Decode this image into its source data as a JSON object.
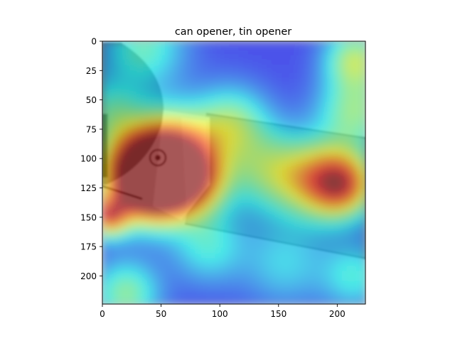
{
  "chart_data": {
    "type": "heatmap",
    "title": "can opener, tin opener",
    "xlabel": "",
    "ylabel": "",
    "xlim": [
      0,
      224
    ],
    "ylim": [
      224,
      0
    ],
    "xticks": [
      0,
      50,
      100,
      150,
      200
    ],
    "yticks": [
      0,
      25,
      50,
      75,
      100,
      125,
      150,
      175,
      200
    ],
    "colormap": "jet",
    "colormap_stops": [
      "#00008f",
      "#0000ff",
      "#00ffff",
      "#ffff00",
      "#ff0000",
      "#800000"
    ],
    "overlay_alpha": 0.5,
    "underlying_image": "grayscale photo of a can opener (blade, gear, handle) — drawn as shapes",
    "grid": false,
    "legend": "none",
    "hotspots": [
      {
        "x": 45,
        "y": 122,
        "value": 1.0,
        "spread": 22
      },
      {
        "x": 60,
        "y": 95,
        "value": 0.7,
        "spread": 25
      },
      {
        "x": 28,
        "y": 110,
        "value": 0.55,
        "spread": 25
      },
      {
        "x": 80,
        "y": 120,
        "value": 0.45,
        "spread": 20
      },
      {
        "x": 205,
        "y": 122,
        "value": 0.6,
        "spread": 20
      },
      {
        "x": 180,
        "y": 118,
        "value": 0.4,
        "spread": 25
      },
      {
        "x": 5,
        "y": 150,
        "value": 0.6,
        "spread": 12
      },
      {
        "x": 110,
        "y": 70,
        "value": 0.35,
        "spread": 22
      },
      {
        "x": 140,
        "y": 110,
        "value": 0.3,
        "spread": 25
      },
      {
        "x": 35,
        "y": 5,
        "value": 0.3,
        "spread": 25
      },
      {
        "x": 5,
        "y": 60,
        "value": 0.25,
        "spread": 20
      },
      {
        "x": 215,
        "y": 15,
        "value": 0.4,
        "spread": 18
      },
      {
        "x": 215,
        "y": 60,
        "value": 0.35,
        "spread": 22
      },
      {
        "x": 20,
        "y": 215,
        "value": 0.35,
        "spread": 20
      },
      {
        "x": 215,
        "y": 200,
        "value": 0.25,
        "spread": 20
      },
      {
        "x": 90,
        "y": 175,
        "value": 0.25,
        "spread": 22
      },
      {
        "x": 155,
        "y": 190,
        "value": 0.2,
        "spread": 25
      }
    ],
    "baseline": 0.12
  }
}
